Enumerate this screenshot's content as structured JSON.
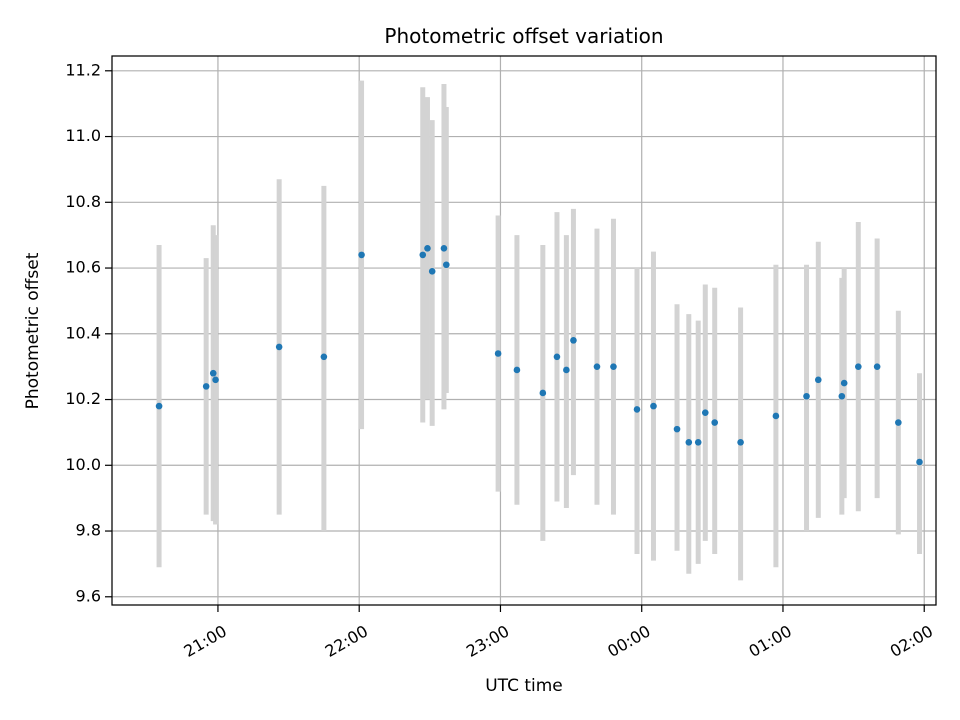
{
  "chart_data": {
    "type": "scatter",
    "title": "Photometric offset variation",
    "xlabel": "UTC time",
    "ylabel": "Photometric offset",
    "x_axis_type": "time",
    "x_start": "20:15",
    "x_end": "02:05",
    "x_ticks": [
      "21:00",
      "22:00",
      "23:00",
      "00:00",
      "01:00",
      "02:00"
    ],
    "ylim": [
      9.575,
      11.245
    ],
    "y_ticks": [
      "9.6",
      "9.8",
      "10.0",
      "10.2",
      "10.4",
      "10.6",
      "10.8",
      "11.0",
      "11.2"
    ],
    "grid": true,
    "marker_color": "#1f77b4",
    "errorbar_color": "#d3d3d3",
    "points": [
      {
        "time": "20:35",
        "y": 10.18,
        "ylow": 9.69,
        "yhigh": 10.67
      },
      {
        "time": "20:55",
        "y": 10.24,
        "ylow": 9.85,
        "yhigh": 10.63
      },
      {
        "time": "20:58",
        "y": 10.28,
        "ylow": 9.83,
        "yhigh": 10.73
      },
      {
        "time": "20:59",
        "y": 10.26,
        "ylow": 9.82,
        "yhigh": 10.7
      },
      {
        "time": "21:26",
        "y": 10.36,
        "ylow": 9.85,
        "yhigh": 10.87
      },
      {
        "time": "21:45",
        "y": 10.33,
        "ylow": 9.8,
        "yhigh": 10.85
      },
      {
        "time": "22:01",
        "y": 10.64,
        "ylow": 10.11,
        "yhigh": 11.17
      },
      {
        "time": "22:27",
        "y": 10.64,
        "ylow": 10.13,
        "yhigh": 11.15
      },
      {
        "time": "22:29",
        "y": 10.66,
        "ylow": 10.2,
        "yhigh": 11.12
      },
      {
        "time": "22:31",
        "y": 10.59,
        "ylow": 10.12,
        "yhigh": 11.05
      },
      {
        "time": "22:36",
        "y": 10.66,
        "ylow": 10.17,
        "yhigh": 11.16
      },
      {
        "time": "22:37",
        "y": 10.61,
        "ylow": 10.22,
        "yhigh": 11.09
      },
      {
        "time": "22:59",
        "y": 10.34,
        "ylow": 9.92,
        "yhigh": 10.76
      },
      {
        "time": "23:07",
        "y": 10.29,
        "ylow": 9.88,
        "yhigh": 10.7
      },
      {
        "time": "23:18",
        "y": 10.22,
        "ylow": 9.77,
        "yhigh": 10.67
      },
      {
        "time": "23:24",
        "y": 10.33,
        "ylow": 9.89,
        "yhigh": 10.77
      },
      {
        "time": "23:28",
        "y": 10.29,
        "ylow": 9.87,
        "yhigh": 10.7
      },
      {
        "time": "23:31",
        "y": 10.38,
        "ylow": 9.97,
        "yhigh": 10.78
      },
      {
        "time": "23:41",
        "y": 10.3,
        "ylow": 9.88,
        "yhigh": 10.72
      },
      {
        "time": "23:48",
        "y": 10.3,
        "ylow": 9.85,
        "yhigh": 10.75
      },
      {
        "time": "23:58",
        "y": 10.17,
        "ylow": 9.73,
        "yhigh": 10.6
      },
      {
        "time": "00:05",
        "y": 10.18,
        "ylow": 9.71,
        "yhigh": 10.65
      },
      {
        "time": "00:15",
        "y": 10.11,
        "ylow": 9.74,
        "yhigh": 10.49
      },
      {
        "time": "00:20",
        "y": 10.07,
        "ylow": 9.67,
        "yhigh": 10.46
      },
      {
        "time": "00:24",
        "y": 10.07,
        "ylow": 9.7,
        "yhigh": 10.44
      },
      {
        "time": "00:27",
        "y": 10.16,
        "ylow": 9.77,
        "yhigh": 10.55
      },
      {
        "time": "00:31",
        "y": 10.13,
        "ylow": 9.73,
        "yhigh": 10.54
      },
      {
        "time": "00:42",
        "y": 10.07,
        "ylow": 9.65,
        "yhigh": 10.48
      },
      {
        "time": "00:57",
        "y": 10.15,
        "ylow": 9.69,
        "yhigh": 10.61
      },
      {
        "time": "01:10",
        "y": 10.21,
        "ylow": 9.8,
        "yhigh": 10.61
      },
      {
        "time": "01:15",
        "y": 10.26,
        "ylow": 9.84,
        "yhigh": 10.68
      },
      {
        "time": "01:25",
        "y": 10.21,
        "ylow": 9.85,
        "yhigh": 10.57
      },
      {
        "time": "01:26",
        "y": 10.25,
        "ylow": 9.9,
        "yhigh": 10.6
      },
      {
        "time": "01:32",
        "y": 10.3,
        "ylow": 9.86,
        "yhigh": 10.74
      },
      {
        "time": "01:40",
        "y": 10.3,
        "ylow": 9.9,
        "yhigh": 10.69
      },
      {
        "time": "01:49",
        "y": 10.13,
        "ylow": 9.79,
        "yhigh": 10.47
      },
      {
        "time": "01:58",
        "y": 10.01,
        "ylow": 9.73,
        "yhigh": 10.28
      }
    ]
  }
}
